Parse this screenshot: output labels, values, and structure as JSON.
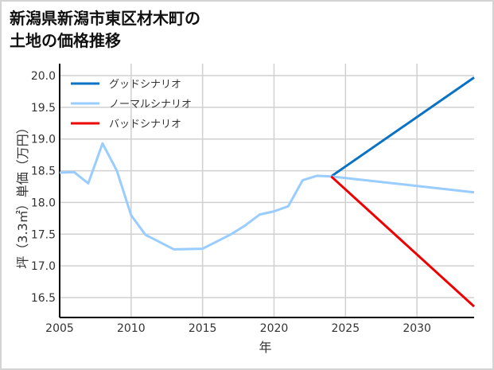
{
  "title_line1": "新潟県新潟市東区材木町の",
  "title_line2": "土地の価格推移",
  "chart_data": {
    "type": "line",
    "title": "新潟県新潟市東区材木町の土地の価格推移",
    "xlabel": "年",
    "ylabel": "坪（3.3㎡）単価（万円）",
    "xlim": [
      2005,
      2034
    ],
    "ylim": [
      16.15,
      20.15
    ],
    "xticks": [
      2005,
      2010,
      2015,
      2020,
      2025,
      2030
    ],
    "yticks": [
      16.5,
      17.0,
      17.5,
      18.0,
      18.5,
      19.0,
      19.5,
      20.0
    ],
    "grid": true,
    "legend_position": "upper left",
    "series": [
      {
        "name": "グッドシナリオ",
        "color": "#0a72c4",
        "x": [
          2024,
          2034
        ],
        "values": [
          18.41,
          19.97
        ]
      },
      {
        "name": "ノーマルシナリオ",
        "color": "#99ccff",
        "x": [
          2005,
          2006,
          2007,
          2008,
          2009,
          2010,
          2011,
          2013,
          2015,
          2017,
          2018,
          2019,
          2020,
          2021,
          2022,
          2023,
          2024,
          2034
        ],
        "values": [
          18.47,
          18.48,
          18.3,
          18.93,
          18.5,
          17.8,
          17.49,
          17.26,
          17.27,
          17.5,
          17.64,
          17.81,
          17.86,
          17.94,
          18.35,
          18.42,
          18.41,
          18.16
        ]
      },
      {
        "name": "バッドシナリオ",
        "color": "#ee0000",
        "x": [
          2024,
          2034
        ],
        "values": [
          18.41,
          16.36
        ]
      }
    ]
  }
}
